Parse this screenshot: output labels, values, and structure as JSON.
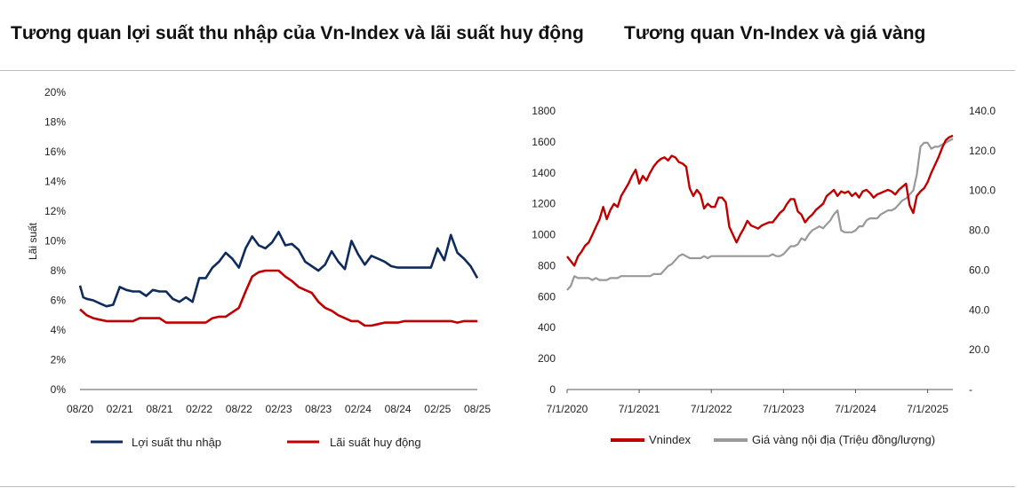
{
  "chart_data": [
    {
      "type": "line",
      "title": "Tương quan lợi suất thu nhập của Vn-Index và lãi suất huy động",
      "ylabel": "Lãi suất",
      "ylim": [
        0,
        20
      ],
      "y_ticks": [
        "0%",
        "2%",
        "4%",
        "6%",
        "8%",
        "10%",
        "12%",
        "14%",
        "16%",
        "18%",
        "20%"
      ],
      "x_ticks": [
        "08/20",
        "02/21",
        "08/21",
        "02/22",
        "08/22",
        "02/23",
        "08/23",
        "02/24",
        "08/24",
        "02/25",
        "08/25"
      ],
      "x_range": [
        0,
        60
      ],
      "legend_position": "bottom",
      "series": [
        {
          "name": "Lợi suất thu nhập",
          "color": "#0f2a5c",
          "x": [
            0,
            0.5,
            1,
            2,
            3,
            4,
            5,
            6,
            7,
            8,
            9,
            10,
            11,
            12,
            13,
            14,
            15,
            16,
            17,
            18,
            19,
            20,
            21,
            22,
            23,
            24,
            25,
            26,
            27,
            28,
            29,
            30,
            31,
            32,
            33,
            34,
            35,
            36,
            37,
            38,
            39,
            40,
            41,
            42,
            43,
            44,
            45,
            46,
            47,
            48,
            49,
            50,
            51,
            52,
            53,
            54,
            55,
            56,
            57,
            58,
            59,
            60
          ],
          "values": [
            7.0,
            6.2,
            6.1,
            6.0,
            5.8,
            5.6,
            5.7,
            6.9,
            6.7,
            6.6,
            6.6,
            6.3,
            6.7,
            6.6,
            6.6,
            6.1,
            5.9,
            6.2,
            5.9,
            7.5,
            7.5,
            8.2,
            8.6,
            9.2,
            8.8,
            8.2,
            9.5,
            10.3,
            9.7,
            9.5,
            9.9,
            10.6,
            9.7,
            9.8,
            9.4,
            8.6,
            8.3,
            8.0,
            8.4,
            9.3,
            8.6,
            8.1,
            10.0,
            9.1,
            8.4,
            9.0,
            8.8,
            8.6,
            8.3,
            8.2,
            8.2,
            8.2,
            8.2,
            8.2,
            8.2,
            9.5,
            8.7,
            10.4,
            9.2,
            8.8,
            8.3,
            7.5
          ]
        },
        {
          "name": "Lãi suất huy động",
          "color": "#c00000",
          "x": [
            0,
            0.5,
            1,
            2,
            3,
            4,
            5,
            6,
            7,
            8,
            9,
            10,
            11,
            12,
            13,
            14,
            15,
            16,
            17,
            18,
            19,
            20,
            21,
            22,
            23,
            24,
            25,
            26,
            27,
            28,
            29,
            30,
            31,
            32,
            33,
            34,
            35,
            36,
            37,
            38,
            39,
            40,
            41,
            42,
            43,
            44,
            45,
            46,
            47,
            48,
            49,
            50,
            51,
            52,
            53,
            54,
            55,
            56,
            57,
            58,
            59,
            60
          ],
          "values": [
            5.4,
            5.2,
            5.0,
            4.8,
            4.7,
            4.6,
            4.6,
            4.6,
            4.6,
            4.6,
            4.8,
            4.8,
            4.8,
            4.8,
            4.5,
            4.5,
            4.5,
            4.5,
            4.5,
            4.5,
            4.5,
            4.8,
            4.9,
            4.9,
            5.2,
            5.5,
            6.6,
            7.6,
            7.9,
            8.0,
            8.0,
            8.0,
            7.6,
            7.3,
            6.9,
            6.7,
            6.5,
            5.9,
            5.5,
            5.3,
            5.0,
            4.8,
            4.6,
            4.6,
            4.3,
            4.3,
            4.4,
            4.5,
            4.5,
            4.5,
            4.6,
            4.6,
            4.6,
            4.6,
            4.6,
            4.6,
            4.6,
            4.6,
            4.5,
            4.6,
            4.6,
            4.6
          ]
        }
      ]
    },
    {
      "type": "line",
      "title": "Tương quan Vn-Index và giá vàng",
      "ylim": [
        0,
        1800
      ],
      "y2lim": [
        0,
        140
      ],
      "y_ticks": [
        "0",
        "200",
        "400",
        "600",
        "800",
        "1000",
        "1200",
        "1400",
        "1600",
        "1800"
      ],
      "y2_ticks": [
        "-",
        "20.0",
        "40.0",
        "60.0",
        "80.0",
        "100.0",
        "120.0",
        "140.0"
      ],
      "x_ticks": [
        "7/1/2020",
        "7/1/2021",
        "7/1/2022",
        "7/1/2023",
        "7/1/2024",
        "7/1/2025"
      ],
      "x_range": [
        2020.5,
        2025.85
      ],
      "legend_position": "bottom",
      "series": [
        {
          "name": "Vnindex",
          "color": "#c00000",
          "axis": "left",
          "x": [
            2020.5,
            2020.55,
            2020.6,
            2020.65,
            2020.7,
            2020.75,
            2020.8,
            2020.85,
            2020.9,
            2020.95,
            2021.0,
            2021.05,
            2021.1,
            2021.15,
            2021.2,
            2021.25,
            2021.3,
            2021.35,
            2021.4,
            2021.45,
            2021.5,
            2021.55,
            2021.6,
            2021.65,
            2021.7,
            2021.75,
            2021.8,
            2021.85,
            2021.9,
            2021.95,
            2022.0,
            2022.05,
            2022.1,
            2022.15,
            2022.2,
            2022.25,
            2022.3,
            2022.35,
            2022.4,
            2022.45,
            2022.5,
            2022.55,
            2022.6,
            2022.65,
            2022.7,
            2022.75,
            2022.8,
            2022.85,
            2022.9,
            2022.95,
            2023.0,
            2023.05,
            2023.1,
            2023.15,
            2023.2,
            2023.25,
            2023.3,
            2023.35,
            2023.4,
            2023.45,
            2023.5,
            2023.55,
            2023.6,
            2023.65,
            2023.7,
            2023.75,
            2023.8,
            2023.85,
            2023.9,
            2023.95,
            2024.0,
            2024.05,
            2024.1,
            2024.15,
            2024.2,
            2024.25,
            2024.3,
            2024.35,
            2024.4,
            2024.45,
            2024.5,
            2024.55,
            2024.6,
            2024.65,
            2024.7,
            2024.75,
            2024.8,
            2024.85,
            2024.9,
            2024.95,
            2025.0,
            2025.05,
            2025.1,
            2025.15,
            2025.2,
            2025.25,
            2025.3,
            2025.35,
            2025.4,
            2025.45,
            2025.5,
            2025.55,
            2025.6,
            2025.65,
            2025.7,
            2025.75,
            2025.8,
            2025.85
          ],
          "values": [
            860,
            830,
            800,
            860,
            890,
            930,
            950,
            1000,
            1050,
            1100,
            1180,
            1100,
            1160,
            1200,
            1180,
            1250,
            1290,
            1330,
            1380,
            1420,
            1330,
            1380,
            1350,
            1400,
            1440,
            1470,
            1490,
            1500,
            1480,
            1510,
            1500,
            1470,
            1460,
            1440,
            1300,
            1250,
            1290,
            1260,
            1170,
            1200,
            1180,
            1180,
            1240,
            1240,
            1210,
            1050,
            1000,
            950,
            1000,
            1040,
            1090,
            1060,
            1050,
            1040,
            1060,
            1070,
            1080,
            1080,
            1110,
            1140,
            1160,
            1200,
            1230,
            1230,
            1150,
            1130,
            1080,
            1110,
            1130,
            1160,
            1180,
            1200,
            1250,
            1270,
            1290,
            1250,
            1280,
            1270,
            1280,
            1250,
            1270,
            1240,
            1280,
            1290,
            1270,
            1240,
            1260,
            1270,
            1280,
            1290,
            1280,
            1260,
            1290,
            1310,
            1330,
            1190,
            1140,
            1250,
            1280,
            1300,
            1340,
            1400,
            1450,
            1500,
            1560,
            1610,
            1630,
            1640
          ]
        },
        {
          "name": "Giá vàng nội địa (Triệu đồng/lượng)",
          "color": "#999999",
          "axis": "right",
          "x": [
            2020.5,
            2020.55,
            2020.6,
            2020.65,
            2020.7,
            2020.75,
            2020.8,
            2020.85,
            2020.9,
            2020.95,
            2021.0,
            2021.05,
            2021.1,
            2021.15,
            2021.2,
            2021.25,
            2021.3,
            2021.35,
            2021.4,
            2021.45,
            2021.5,
            2021.55,
            2021.6,
            2021.65,
            2021.7,
            2021.75,
            2021.8,
            2021.85,
            2021.9,
            2021.95,
            2022.0,
            2022.05,
            2022.1,
            2022.15,
            2022.2,
            2022.25,
            2022.3,
            2022.35,
            2022.4,
            2022.45,
            2022.5,
            2022.55,
            2022.6,
            2022.65,
            2022.7,
            2022.75,
            2022.8,
            2022.85,
            2022.9,
            2022.95,
            2023.0,
            2023.05,
            2023.1,
            2023.15,
            2023.2,
            2023.25,
            2023.3,
            2023.35,
            2023.4,
            2023.45,
            2023.5,
            2023.55,
            2023.6,
            2023.65,
            2023.7,
            2023.75,
            2023.8,
            2023.85,
            2023.9,
            2023.95,
            2024.0,
            2024.05,
            2024.1,
            2024.15,
            2024.2,
            2024.25,
            2024.3,
            2024.35,
            2024.4,
            2024.45,
            2024.5,
            2024.55,
            2024.6,
            2024.65,
            2024.7,
            2024.75,
            2024.8,
            2024.85,
            2024.9,
            2024.95,
            2025.0,
            2025.05,
            2025.1,
            2025.15,
            2025.2,
            2025.25,
            2025.3,
            2025.35,
            2025.4,
            2025.45,
            2025.5,
            2025.55,
            2025.6,
            2025.65,
            2025.7,
            2025.75,
            2025.8,
            2025.85
          ],
          "values": [
            50,
            52,
            57,
            56,
            56,
            56,
            56,
            55,
            56,
            55,
            55,
            55,
            56,
            56,
            56,
            57,
            57,
            57,
            57,
            57,
            57,
            57,
            57,
            57,
            58,
            58,
            58,
            60,
            62,
            63,
            65,
            67,
            68,
            67,
            66,
            66,
            66,
            66,
            67,
            66,
            67,
            67,
            67,
            67,
            67,
            67,
            67,
            67,
            67,
            67,
            67,
            67,
            67,
            67,
            67,
            67,
            67,
            68,
            67,
            67,
            68,
            70,
            72,
            72,
            73,
            76,
            75,
            78,
            80,
            81,
            82,
            81,
            83,
            85,
            88,
            90,
            80,
            79,
            79,
            79,
            80,
            82,
            82,
            85,
            86,
            86,
            86,
            88,
            89,
            90,
            90,
            91,
            93,
            95,
            96,
            98,
            100,
            108,
            122,
            124,
            124,
            121,
            122,
            122,
            123,
            124,
            125,
            126
          ]
        }
      ]
    }
  ]
}
